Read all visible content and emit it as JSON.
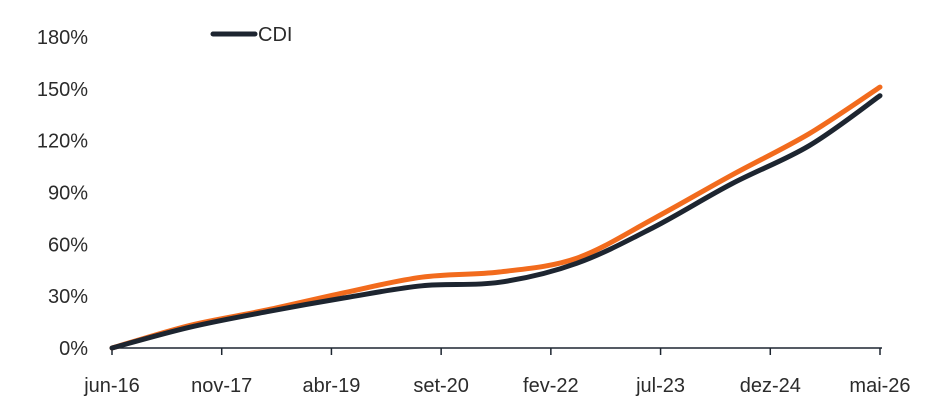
{
  "chart_data": {
    "type": "line",
    "title": "",
    "xlabel": "",
    "ylabel": "",
    "x_ticks": [
      "jun-16",
      "nov-17",
      "abr-19",
      "set-20",
      "fev-22",
      "jul-23",
      "dez-24",
      "mai-26"
    ],
    "y_ticks": [
      "0%",
      "30%",
      "60%",
      "90%",
      "120%",
      "150%",
      "180%"
    ],
    "ylim": [
      0,
      180
    ],
    "grid": false,
    "legend": {
      "position": "top-left"
    },
    "series": [
      {
        "name": "",
        "color": "#f26b1d",
        "x": [
          "jun-16",
          "jun-17",
          "jun-18",
          "jun-19",
          "jun-20",
          "jun-21",
          "jun-22",
          "jun-23",
          "jun-24",
          "jun-25",
          "mai-26"
        ],
        "values": [
          0,
          13,
          22,
          32,
          41,
          44,
          52,
          75,
          100,
          124,
          151
        ]
      },
      {
        "name": "CDI",
        "color": "#1d2530",
        "x": [
          "jun-16",
          "jun-17",
          "jun-18",
          "jun-19",
          "jun-20",
          "jun-21",
          "jun-22",
          "jun-23",
          "jun-24",
          "jun-25",
          "mai-26"
        ],
        "values": [
          0,
          12,
          21,
          29,
          36,
          38,
          49,
          70,
          95,
          117,
          146
        ]
      }
    ]
  }
}
